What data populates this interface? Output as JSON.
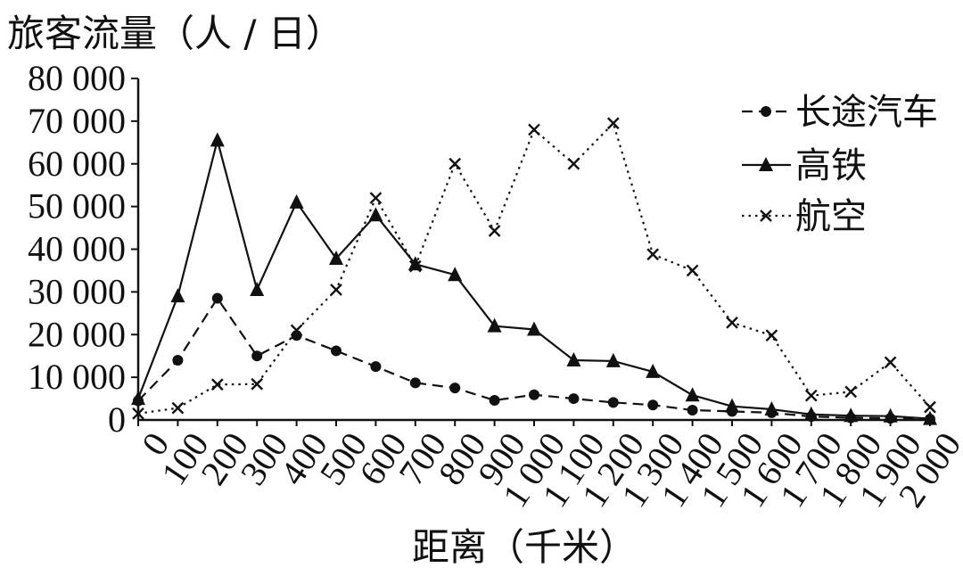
{
  "chart_data": {
    "type": "line",
    "ylabel": "旅客流量（人 / 日）",
    "xlabel": "距离（千米）",
    "x": [
      0,
      100,
      200,
      300,
      400,
      500,
      600,
      700,
      800,
      900,
      1000,
      1100,
      1200,
      1300,
      1400,
      1500,
      1600,
      1700,
      1800,
      1900,
      2000
    ],
    "x_tick_labels": [
      "0",
      "100",
      "200",
      "300",
      "400",
      "500",
      "600",
      "700",
      "800",
      "900",
      "1 000",
      "1 100",
      "1 200",
      "1 300",
      "1 400",
      "1 500",
      "1 600",
      "1 700",
      "1 800",
      "1 900",
      "2 000"
    ],
    "ylim": [
      0,
      80000
    ],
    "y_ticks": [
      0,
      10000,
      20000,
      30000,
      40000,
      50000,
      60000,
      70000,
      80000
    ],
    "y_tick_labels": [
      "0",
      "10 000",
      "20 000",
      "30 000",
      "40 000",
      "50 000",
      "60 000",
      "70 000",
      "80 000"
    ],
    "legend_position": "top-right",
    "grid": false,
    "series": [
      {
        "name": "长途汽车",
        "marker": "circle",
        "line_style": "dashed",
        "values": [
          4500,
          14000,
          28500,
          15000,
          19800,
          16200,
          12500,
          8700,
          7500,
          4600,
          5900,
          5000,
          4100,
          3500,
          2300,
          2000,
          1700,
          800,
          500,
          400,
          200
        ]
      },
      {
        "name": "高铁",
        "marker": "triangle",
        "line_style": "solid",
        "values": [
          5000,
          29000,
          65500,
          30500,
          51000,
          37800,
          48000,
          36500,
          34000,
          22000,
          21200,
          14000,
          13800,
          11300,
          5800,
          3200,
          2500,
          1300,
          1000,
          900,
          300
        ]
      },
      {
        "name": "航空",
        "marker": "x",
        "line_style": "dotted",
        "values": [
          1500,
          2800,
          8300,
          8400,
          21000,
          30500,
          52000,
          36000,
          60000,
          44300,
          68000,
          60000,
          69500,
          38800,
          35000,
          22800,
          19800,
          5700,
          6600,
          13500,
          3000
        ]
      }
    ]
  }
}
